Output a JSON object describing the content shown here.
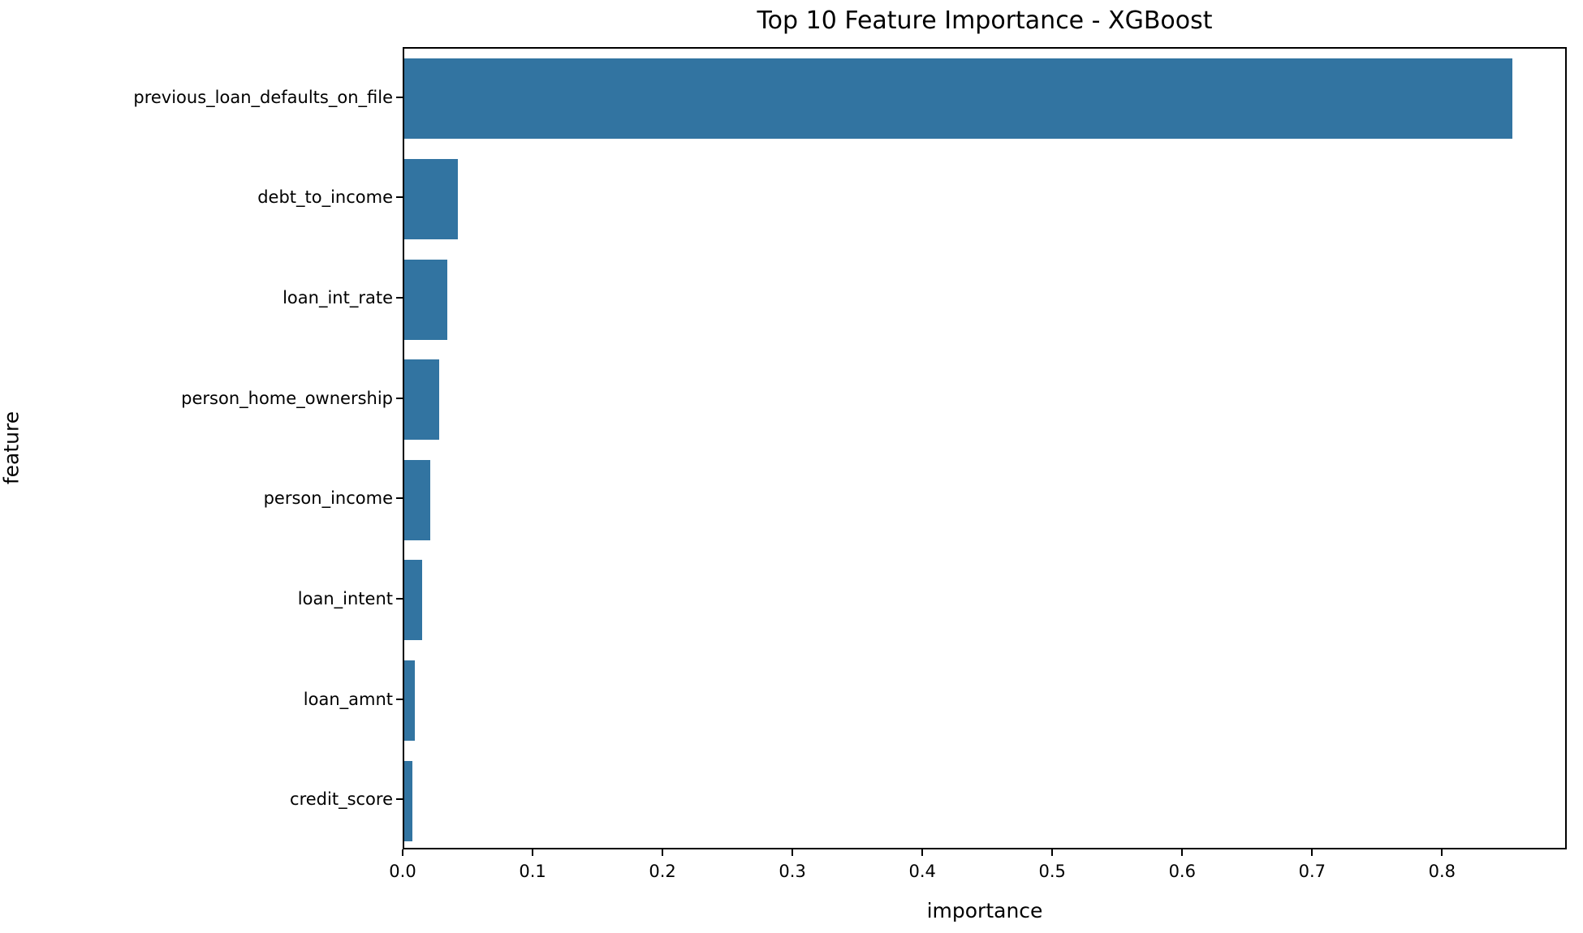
{
  "chart_data": {
    "type": "bar",
    "orientation": "horizontal",
    "title": "Top 10 Feature Importance - XGBoost",
    "xlabel": "importance",
    "ylabel": "feature",
    "categories": [
      "previous_loan_defaults_on_file",
      "debt_to_income",
      "loan_int_rate",
      "person_home_ownership",
      "person_income",
      "loan_intent",
      "loan_amnt",
      "credit_score"
    ],
    "values": [
      0.853,
      0.041,
      0.033,
      0.027,
      0.02,
      0.014,
      0.008,
      0.006
    ],
    "xlim": [
      0,
      0.896
    ],
    "xticks": [
      0.0,
      0.1,
      0.2,
      0.3,
      0.4,
      0.5,
      0.6,
      0.7,
      0.8
    ],
    "xtick_decimals": 1,
    "bar_color": "#3274a1",
    "spine_color": "#000000",
    "grid": false,
    "legend": null
  }
}
